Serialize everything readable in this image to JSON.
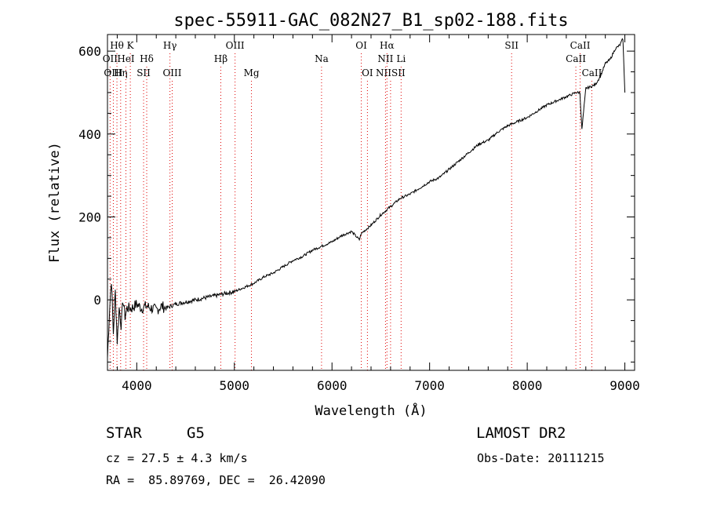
{
  "chart_data": {
    "type": "line",
    "title": "spec-55911-GAC_082N27_B1_sp02-188.fits",
    "xlabel": "Wavelength (Å)",
    "ylabel": "Flux (relative)",
    "xlim": [
      3700,
      9100
    ],
    "ylim": [
      -170,
      640
    ],
    "x_ticks": [
      4000,
      5000,
      6000,
      7000,
      8000,
      9000
    ],
    "y_ticks": [
      0,
      200,
      400,
      600
    ],
    "grid": false,
    "line_color": "#000000",
    "marker_color": "#e00000",
    "series": [
      {
        "x": [
          3700,
          3720,
          3740,
          3760,
          3780,
          3800,
          3820,
          3840,
          3860,
          3880,
          3900,
          3950,
          4000,
          4050,
          4100,
          4150,
          4200,
          4250,
          4300,
          4350,
          4400,
          4500,
          4600,
          4700,
          4800,
          4900,
          5000,
          5100,
          5200,
          5300,
          5400,
          5500,
          5600,
          5700,
          5800,
          5900,
          6000,
          6100,
          6200,
          6280,
          6300,
          6400,
          6500,
          6600,
          6700,
          6800,
          6900,
          7000,
          7100,
          7200,
          7300,
          7400,
          7500,
          7600,
          7700,
          7800,
          7900,
          8000,
          8100,
          8200,
          8300,
          8400,
          8450,
          8500,
          8540,
          8560,
          8600,
          8660,
          8700,
          8750,
          8800,
          8850,
          8900,
          8950,
          8980,
          9000
        ],
        "y": [
          -140,
          -30,
          50,
          -80,
          20,
          -100,
          -20,
          -60,
          0,
          -40,
          -20,
          -20,
          -10,
          -20,
          -15,
          -20,
          -25,
          -15,
          -20,
          -15,
          -10,
          -5,
          0,
          5,
          10,
          15,
          20,
          30,
          40,
          55,
          65,
          80,
          95,
          105,
          120,
          130,
          140,
          155,
          165,
          145,
          160,
          180,
          205,
          225,
          245,
          255,
          270,
          285,
          295,
          315,
          335,
          355,
          375,
          385,
          405,
          420,
          430,
          440,
          455,
          470,
          480,
          490,
          495,
          500,
          500,
          410,
          510,
          515,
          520,
          540,
          570,
          580,
          605,
          615,
          630,
          500
        ]
      }
    ],
    "lines": [
      {
        "label": "Hθ",
        "x": 3797,
        "row": 1
      },
      {
        "label": "K",
        "x": 3934,
        "row": 1
      },
      {
        "label": "OII",
        "x": 3727,
        "row": 2
      },
      {
        "label": "HeI",
        "x": 3889,
        "row": 2
      },
      {
        "label": "Hδ",
        "x": 4102,
        "row": 2
      },
      {
        "label": "OIII",
        "x": 3760,
        "row": 3
      },
      {
        "label": "Hη",
        "x": 3835,
        "row": 3
      },
      {
        "label": "SII",
        "x": 4070,
        "row": 3
      },
      {
        "label": "Hγ",
        "x": 4340,
        "row": 1
      },
      {
        "label": "OIII",
        "x": 4363,
        "row": 3
      },
      {
        "label": "OIII",
        "x": 5007,
        "row": 1
      },
      {
        "label": "Hβ",
        "x": 4861,
        "row": 2
      },
      {
        "label": "Mg",
        "x": 5175,
        "row": 3
      },
      {
        "label": "Na",
        "x": 5893,
        "row": 2
      },
      {
        "label": "OI",
        "x": 6300,
        "row": 1
      },
      {
        "label": "OI",
        "x": 6363,
        "row": 3
      },
      {
        "label": "Hα",
        "x": 6563,
        "row": 1
      },
      {
        "label": "NII",
        "x": 6548,
        "row": 2
      },
      {
        "label": "Li",
        "x": 6708,
        "row": 2
      },
      {
        "label": "NIISII",
        "x": 6600,
        "row": 3
      },
      {
        "label": "SII",
        "x": 7840,
        "row": 1
      },
      {
        "label": "CaII",
        "x": 8542,
        "row": 1
      },
      {
        "label": "CaII",
        "x": 8498,
        "row": 2
      },
      {
        "label": "CaII",
        "x": 8662,
        "row": 3
      }
    ]
  },
  "info": {
    "object_class": "STAR",
    "subclass": "G5",
    "survey": "LAMOST DR2",
    "cz": "cz = 27.5 ± 4.3 km/s",
    "obs_date": "Obs-Date: 20111215",
    "coords": "RA =  85.89769, DEC =  26.42090"
  }
}
